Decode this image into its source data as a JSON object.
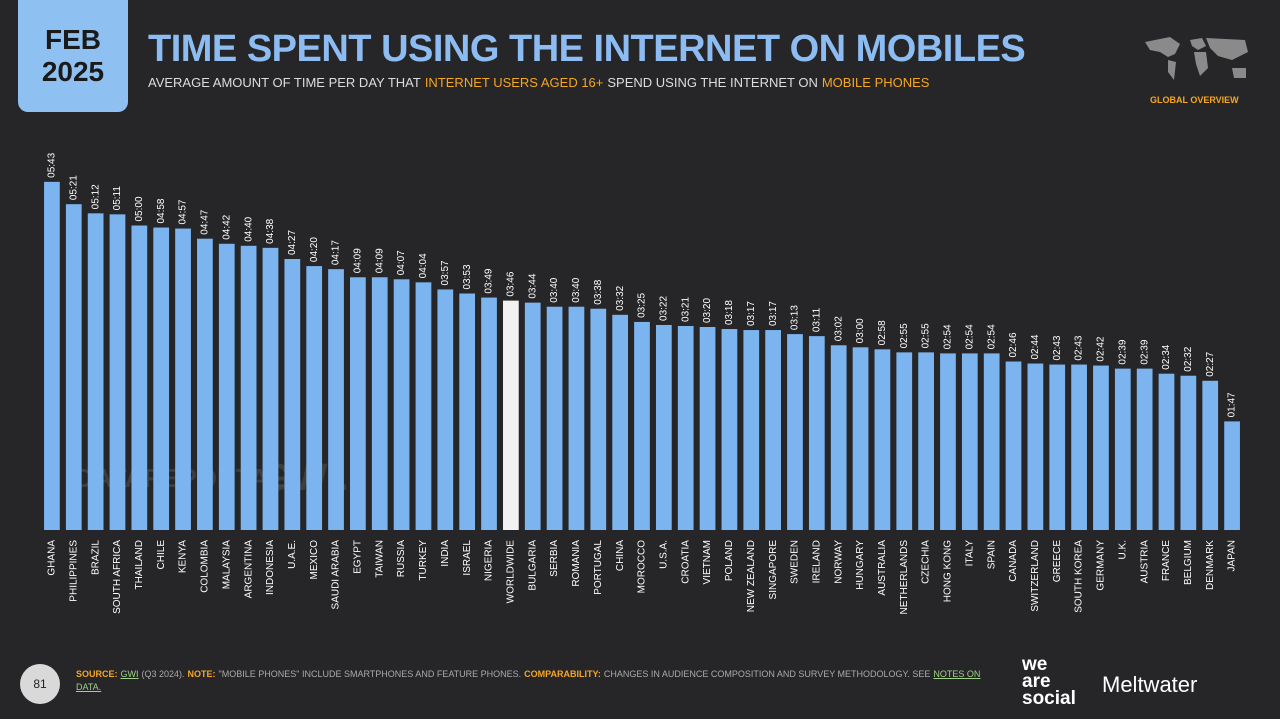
{
  "badge": {
    "month": "FEB",
    "year": "2025"
  },
  "chart_data": {
    "type": "bar",
    "title": "TIME SPENT USING THE INTERNET ON MOBILES",
    "subtitle": [
      "AVERAGE AMOUNT OF TIME PER DAY THAT",
      "INTERNET USERS AGED 16+",
      "SPEND USING THE INTERNET ON",
      "MOBILE PHONES"
    ],
    "categories": [
      "GHANA",
      "PHILIPPINES",
      "BRAZIL",
      "SOUTH AFRICA",
      "THAILAND",
      "CHILE",
      "KENYA",
      "COLOMBIA",
      "MALAYSIA",
      "ARGENTINA",
      "INDONESIA",
      "U.A.E.",
      "MEXICO",
      "SAUDI ARABIA",
      "EGYPT",
      "TAIWAN",
      "RUSSIA",
      "TURKEY",
      "INDIA",
      "ISRAEL",
      "NIGERIA",
      "WORLDWIDE",
      "BULGARIA",
      "SERBIA",
      "ROMANIA",
      "PORTUGAL",
      "CHINA",
      "MOROCCO",
      "U.S.A.",
      "CROATIA",
      "VIETNAM",
      "POLAND",
      "NEW ZEALAND",
      "SINGAPORE",
      "SWEDEN",
      "IRELAND",
      "NORWAY",
      "HUNGARY",
      "AUSTRALIA",
      "NETHERLANDS",
      "CZECHIA",
      "HONG KONG",
      "ITALY",
      "SPAIN",
      "CANADA",
      "SWITZERLAND",
      "GREECE",
      "SOUTH KOREA",
      "GERMANY",
      "U.K.",
      "AUSTRIA",
      "FRANCE",
      "BELGIUM",
      "DENMARK",
      "JAPAN"
    ],
    "values": [
      343,
      321,
      312,
      311,
      300,
      298,
      297,
      287,
      282,
      280,
      278,
      267,
      260,
      257,
      249,
      249,
      247,
      244,
      237,
      233,
      229,
      226,
      224,
      220,
      220,
      218,
      212,
      205,
      202,
      201,
      200,
      198,
      197,
      197,
      193,
      191,
      182,
      180,
      178,
      175,
      175,
      174,
      174,
      174,
      166,
      164,
      163,
      163,
      162,
      159,
      159,
      154,
      152,
      147,
      107
    ],
    "value_labels": [
      "05:43",
      "05:21",
      "05:12",
      "05:11",
      "05:00",
      "04:58",
      "04:57",
      "04:47",
      "04:42",
      "04:40",
      "04:38",
      "04:27",
      "04:20",
      "04:17",
      "04:09",
      "04:09",
      "04:07",
      "04:04",
      "03:57",
      "03:53",
      "03:49",
      "03:46",
      "03:44",
      "03:40",
      "03:40",
      "03:38",
      "03:32",
      "03:25",
      "03:22",
      "03:21",
      "03:20",
      "03:18",
      "03:17",
      "03:17",
      "03:13",
      "03:11",
      "03:02",
      "03:00",
      "02:58",
      "02:55",
      "02:55",
      "02:54",
      "02:54",
      "02:54",
      "02:46",
      "02:44",
      "02:43",
      "02:43",
      "02:42",
      "02:39",
      "02:39",
      "02:34",
      "02:32",
      "02:27",
      "01:47"
    ],
    "color": "#7cb4f0",
    "highlight": {
      "index": 21,
      "color": "#f2f2f2"
    }
  },
  "region": "GLOBAL OVERVIEW",
  "page_number": "81",
  "watermarks": [
    "DATAREPORTAL",
    "GWI."
  ],
  "footer": {
    "source_label": "SOURCE:",
    "source": "GWI",
    "source_rest": "(Q3 2024).",
    "note_label": "NOTE:",
    "note": "\"MOBILE PHONES\" INCLUDE SMARTPHONES AND FEATURE PHONES.",
    "comp_label": "COMPARABILITY:",
    "comp": "CHANGES IN AUDIENCE COMPOSITION AND SURVEY METHODOLOGY. SEE",
    "notes_link": "NOTES ON DATA."
  },
  "logos": {
    "we": "we",
    "are": "are",
    "social": "social",
    "meltwater": "Meltwater"
  }
}
